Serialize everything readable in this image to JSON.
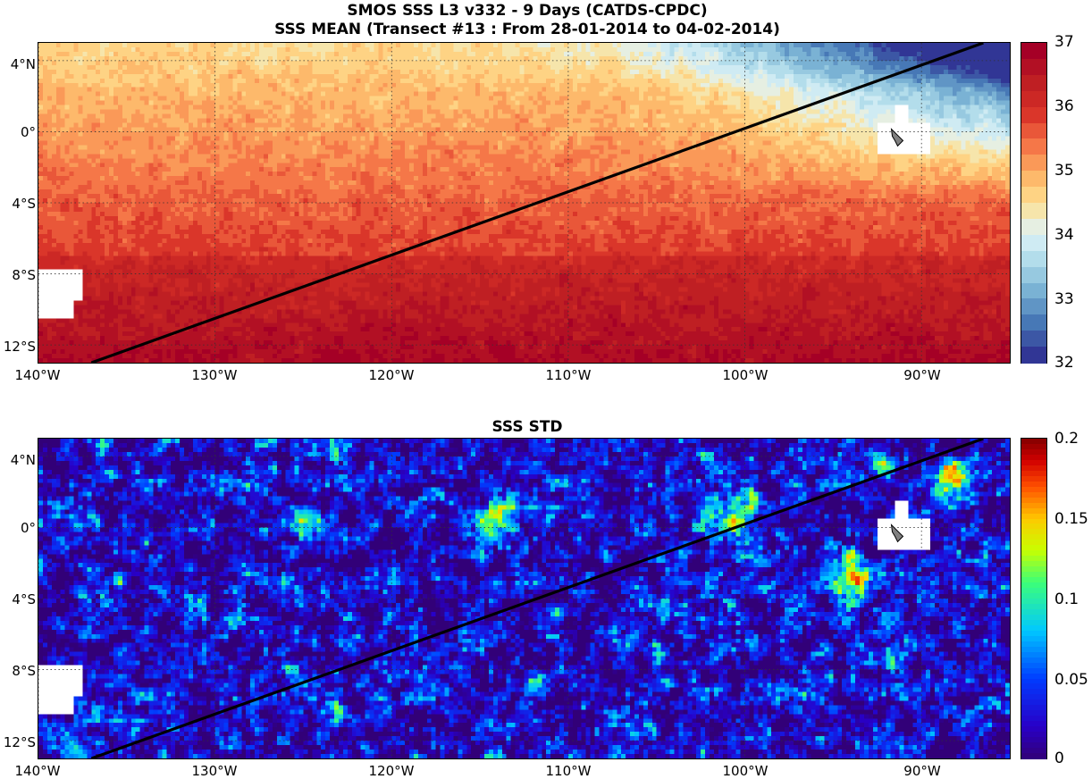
{
  "titles": {
    "line1": "SMOS SSS L3 v332 - 9 Days (CATDS-CPDC)",
    "line2": "SSS MEAN (Transect #13 : From 28-01-2014 to 04-02-2014)",
    "line3": "SSS STD"
  },
  "axes": {
    "lat_labels": [
      "4°N",
      "0°",
      "4°S",
      "8°S",
      "12°S"
    ],
    "lat_values": [
      4,
      0,
      -4,
      -8,
      -12
    ],
    "lon_labels": [
      "140°W",
      "130°W",
      "120°W",
      "110°W",
      "100°W",
      "90°W"
    ],
    "lon_values": [
      -140,
      -130,
      -120,
      -110,
      -100,
      -90
    ],
    "lon_range": [
      -140,
      -85
    ],
    "lat_range": [
      -13,
      5
    ]
  },
  "transect": {
    "start": [
      -137,
      -13
    ],
    "end": [
      -86.5,
      5
    ]
  },
  "mean_colorbar": {
    "ticks": [
      "37",
      "36",
      "35",
      "34",
      "33",
      "32"
    ],
    "min": 32,
    "max": 37,
    "colormap": "RdYlBu_r"
  },
  "std_colorbar": {
    "ticks": [
      "0.2",
      "0.15",
      "0.1",
      "0.05",
      "0"
    ],
    "min": 0,
    "max": 0.2,
    "colormap": "jet"
  },
  "land_color": "#ffffff",
  "island_color": "#808080"
}
